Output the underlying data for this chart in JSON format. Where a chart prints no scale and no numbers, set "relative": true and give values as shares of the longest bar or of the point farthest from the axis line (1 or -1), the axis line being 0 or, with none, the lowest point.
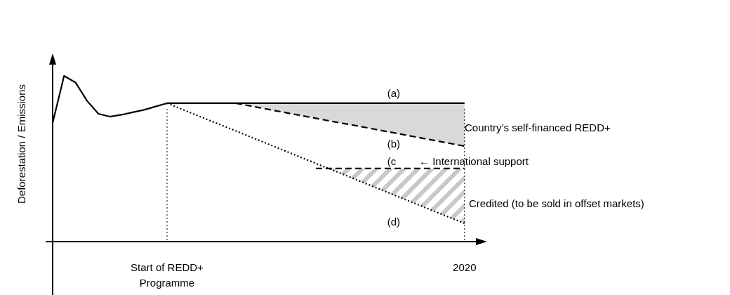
{
  "chart_data": {
    "type": "line",
    "relative": true,
    "ylabel": "Deforestation / Emissions",
    "categories": [
      null,
      null,
      null,
      null,
      null,
      null,
      null,
      null,
      null,
      null,
      "Start of REDD+ Programme",
      null,
      null,
      null,
      null,
      null,
      null,
      null,
      null,
      null,
      null,
      null,
      null,
      null,
      null,
      null,
      null,
      null,
      null,
      null,
      null,
      null,
      null,
      null,
      null,
      null,
      "2020"
    ],
    "series": [
      {
        "name": "(a)",
        "color": "#000000",
        "line_style": "solid",
        "values": [
          0.716,
          1,
          0.96,
          0.85,
          0.771,
          0.754,
          0.765,
          0.78,
          0.795,
          0.815,
          0.835,
          0.835,
          0.835,
          0.835,
          0.835,
          0.835,
          0.835,
          0.835,
          0.835,
          0.835,
          0.835,
          0.835,
          0.835,
          0.835,
          0.835,
          0.835,
          0.835,
          0.835,
          0.835,
          0.835,
          0.835,
          0.835,
          0.835,
          0.835,
          0.835,
          0.835,
          0.835
        ]
      },
      {
        "name": "(b)",
        "color": "#000000",
        "line_style": "dashed",
        "values": [
          null,
          null,
          null,
          null,
          null,
          null,
          null,
          null,
          null,
          null,
          null,
          null,
          null,
          null,
          null,
          null,
          0.835,
          0.822,
          0.809,
          0.796,
          0.783,
          0.77,
          0.757,
          0.744,
          0.731,
          0.718,
          0.706,
          0.693,
          0.68,
          0.667,
          0.654,
          0.641,
          0.628,
          0.615,
          0.602,
          0.589,
          0.576
        ]
      },
      {
        "name": "(c",
        "color": "#000000",
        "line_style": "dashed",
        "values": [
          null,
          null,
          null,
          null,
          null,
          null,
          null,
          null,
          null,
          null,
          null,
          null,
          null,
          null,
          null,
          null,
          null,
          null,
          null,
          null,
          null,
          null,
          null,
          0.441,
          0.441,
          0.441,
          0.441,
          0.441,
          0.441,
          0.441,
          0.441,
          0.441,
          0.441,
          0.441,
          0.441,
          0.441,
          0.441
        ]
      },
      {
        "name": "(d)",
        "color": "#000000",
        "line_style": "dotted",
        "values": [
          null,
          null,
          null,
          null,
          null,
          null,
          null,
          null,
          null,
          null,
          0.835,
          0.807,
          0.779,
          0.751,
          0.723,
          0.696,
          0.668,
          0.64,
          0.612,
          0.584,
          0.556,
          0.528,
          0.5,
          0.472,
          0.444,
          0.417,
          0.389,
          0.361,
          0.333,
          0.305,
          0.277,
          0.249,
          0.221,
          0.193,
          0.165,
          0.138,
          0.11
        ]
      }
    ],
    "ref_lines": [
      {
        "axis": "x",
        "value": "Start of REDD+ Programme",
        "line_style": "dotted",
        "color": "#000000"
      },
      {
        "axis": "x",
        "value": "2020",
        "line_style": "dotted",
        "color": "#000000"
      }
    ],
    "annotations": [
      "← International support",
      "Country’s self-financed REDD+",
      "Credited (to be sold in offset markets)"
    ]
  }
}
